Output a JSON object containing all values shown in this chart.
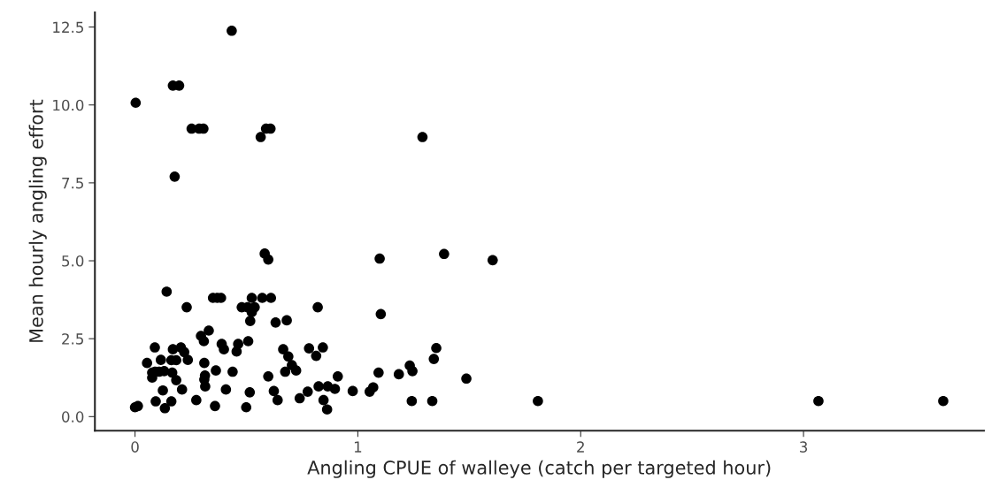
{
  "chart_data": {
    "type": "scatter",
    "xlabel": "Angling CPUE of walleye (catch per targeted hour)",
    "ylabel": "Mean hourly angling effort",
    "xlim": [
      -0.18,
      3.81
    ],
    "ylim": [
      -0.45,
      12.97
    ],
    "xticks": [
      0,
      1,
      2,
      3
    ],
    "yticks": [
      {
        "value": 0,
        "label": "0.0"
      },
      {
        "value": 2.5,
        "label": "2.5"
      },
      {
        "value": 5,
        "label": "5.0"
      },
      {
        "value": 7.5,
        "label": "7.5"
      },
      {
        "value": 10,
        "label": "10.0"
      },
      {
        "value": 12.5,
        "label": "12.5"
      }
    ],
    "grid": false,
    "marker": "circle",
    "series": [
      {
        "color": "#000000",
        "x": [
          0.434,
          0.17,
          0.198,
          0.003,
          0.254,
          0.288,
          0.307,
          0.564,
          0.588,
          0.608,
          1.29,
          0.178,
          0.582,
          0.598,
          1.098,
          1.387,
          1.605,
          1.352,
          1.341,
          1.487,
          1.242,
          1.334,
          1.808,
          3.067,
          3.627,
          1.103,
          1.233,
          1.245,
          1.184,
          1.093,
          1.069,
          1.053,
          0.977,
          0.142,
          0.232,
          0.35,
          0.369,
          0.386,
          0.524,
          0.571,
          0.61,
          0.479,
          0.505,
          0.537,
          0.524,
          0.517,
          0.82,
          0.631,
          0.681,
          0.331,
          0.296,
          0.309,
          0.508,
          0.389,
          0.399,
          0.463,
          0.456,
          0.089,
          0.17,
          0.206,
          0.221,
          0.665,
          0.688,
          0.781,
          0.813,
          0.843,
          0.054,
          0.116,
          0.163,
          0.185,
          0.237,
          0.311,
          0.704,
          0.723,
          0.077,
          0.09,
          0.108,
          0.131,
          0.077,
          0.167,
          0.185,
          0.363,
          0.438,
          0.314,
          0.311,
          0.315,
          0.598,
          0.674,
          0.211,
          0.125,
          0.408,
          0.515,
          0.623,
          0.64,
          0.739,
          0.775,
          0.824,
          0.865,
          0.897,
          0.91,
          0.846,
          0.862,
          0.093,
          0.134,
          0.163,
          0.275,
          0.359,
          0.499,
          0.0,
          0.013
        ],
        "values": [
          12.38,
          10.62,
          10.62,
          10.07,
          9.24,
          9.24,
          9.24,
          8.97,
          9.24,
          9.24,
          8.97,
          7.7,
          5.23,
          5.04,
          5.07,
          5.22,
          5.02,
          2.2,
          1.85,
          1.22,
          0.5,
          0.5,
          0.5,
          0.5,
          0.5,
          3.29,
          1.64,
          1.46,
          1.36,
          1.41,
          0.94,
          0.8,
          0.82,
          4.01,
          3.51,
          3.81,
          3.81,
          3.81,
          3.81,
          3.81,
          3.81,
          3.51,
          3.51,
          3.51,
          3.35,
          3.07,
          3.51,
          3.02,
          3.09,
          2.76,
          2.59,
          2.42,
          2.42,
          2.33,
          2.16,
          2.33,
          2.09,
          2.22,
          2.16,
          2.22,
          2.07,
          2.16,
          1.93,
          2.19,
          1.95,
          2.22,
          1.72,
          1.82,
          1.81,
          1.81,
          1.82,
          1.72,
          1.65,
          1.48,
          1.41,
          1.44,
          1.44,
          1.46,
          1.25,
          1.41,
          1.17,
          1.48,
          1.44,
          1.32,
          1.19,
          0.97,
          1.29,
          1.44,
          0.87,
          0.84,
          0.87,
          0.78,
          0.82,
          0.53,
          0.59,
          0.8,
          0.97,
          0.97,
          0.89,
          1.29,
          0.53,
          0.23,
          0.49,
          0.27,
          0.49,
          0.53,
          0.34,
          0.3,
          0.3,
          0.34
        ]
      }
    ]
  }
}
